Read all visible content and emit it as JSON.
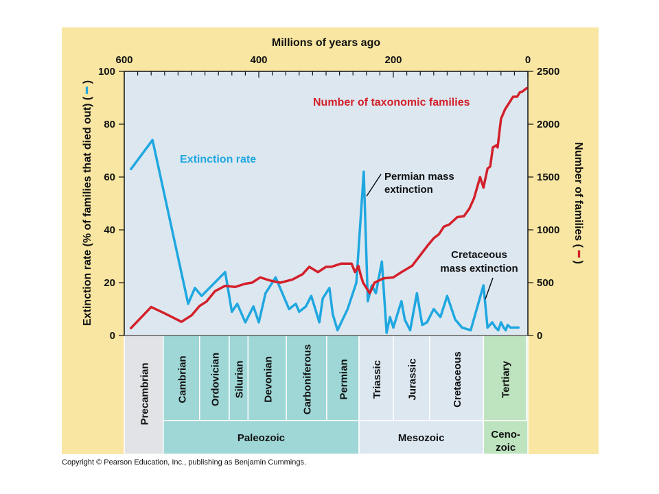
{
  "colors": {
    "frame_bg": "#f8e6a2",
    "plot_bg": "#dce7f0",
    "extinction_line": "#1fa7e0",
    "families_line": "#d3202a",
    "paleozoic_fill": "#9fd6d6",
    "mesozoic_fill": "#dce7f0",
    "cenozoic_fill": "#bde3bf",
    "precambrian_fill": "#e2e3e6"
  },
  "chart_data": {
    "type": "line",
    "top_axis": {
      "label": "Millions of years ago",
      "range": [
        600,
        0
      ],
      "ticks": [
        600,
        400,
        200,
        0
      ],
      "minor_step": 20
    },
    "left_axis": {
      "label": "Extinction rate (% of families that died out) (",
      "label_close": ")",
      "range": [
        0,
        100
      ],
      "ticks": [
        0,
        20,
        40,
        60,
        80,
        100
      ]
    },
    "right_axis": {
      "label": "Number of families (",
      "label_close": ")",
      "range": [
        0,
        2500
      ],
      "ticks": [
        0,
        500,
        1000,
        1500,
        2000,
        2500
      ]
    },
    "series": [
      {
        "name": "Extinction rate",
        "axis": "left",
        "x": [
          590,
          558,
          505,
          495,
          485,
          450,
          440,
          432,
          420,
          408,
          400,
          390,
          375,
          355,
          345,
          340,
          330,
          322,
          310,
          305,
          295,
          290,
          283,
          268,
          255,
          244,
          238,
          232,
          226,
          217,
          210,
          205,
          200,
          188,
          183,
          175,
          165,
          157,
          150,
          140,
          130,
          120,
          108,
          98,
          85,
          66,
          60,
          53,
          48,
          44,
          40,
          36,
          33,
          30,
          26,
          22,
          14
        ],
        "values": [
          63,
          74,
          12,
          18,
          15,
          24,
          9,
          12,
          5,
          11,
          5,
          16,
          22,
          10,
          12,
          9,
          11,
          15,
          5,
          14,
          18,
          8,
          2,
          10,
          20,
          62,
          13,
          19,
          16,
          28,
          1,
          7,
          3,
          13,
          6,
          2,
          16,
          4,
          5,
          10,
          7,
          15,
          6,
          3,
          2,
          19,
          3,
          5,
          3,
          2,
          5,
          3,
          2,
          4,
          3,
          3,
          3
        ]
      },
      {
        "name": "Number of taxonomic families",
        "axis": "right",
        "x": [
          590,
          560,
          540,
          515,
          500,
          488,
          478,
          465,
          450,
          435,
          420,
          410,
          398,
          383,
          368,
          350,
          335,
          325,
          312,
          300,
          292,
          278,
          262,
          257,
          252,
          248,
          245,
          235,
          228,
          215,
          200,
          188,
          172,
          160,
          148,
          140,
          132,
          125,
          117,
          105,
          95,
          87,
          80,
          71,
          66,
          60,
          56,
          52,
          47,
          45,
          40,
          34,
          28,
          22,
          16,
          12,
          8,
          2
        ],
        "values": [
          70,
          270,
          210,
          130,
          190,
          280,
          320,
          420,
          470,
          460,
          490,
          500,
          550,
          520,
          500,
          530,
          580,
          650,
          600,
          650,
          650,
          680,
          680,
          600,
          660,
          560,
          500,
          400,
          500,
          540,
          550,
          600,
          660,
          760,
          860,
          920,
          960,
          1030,
          1050,
          1120,
          1130,
          1200,
          1300,
          1500,
          1400,
          1580,
          1600,
          1780,
          1800,
          1780,
          2050,
          2140,
          2200,
          2260,
          2260,
          2300,
          2310,
          2340
        ]
      }
    ],
    "annotations": [
      {
        "id": "permian",
        "lines": [
          "Permian mass",
          "extinction"
        ]
      },
      {
        "id": "cretaceous",
        "lines": [
          "Cretaceous",
          "mass extinction"
        ]
      }
    ],
    "periods": [
      {
        "name": "Precambrian",
        "start": 600,
        "end": 542,
        "era": "Precambrian"
      },
      {
        "name": "Cambrian",
        "start": 542,
        "end": 488,
        "era": "Paleozoic"
      },
      {
        "name": "Ordovician",
        "start": 488,
        "end": 444,
        "era": "Paleozoic"
      },
      {
        "name": "Silurian",
        "start": 444,
        "end": 416,
        "era": "Paleozoic"
      },
      {
        "name": "Devonian",
        "start": 416,
        "end": 359,
        "era": "Paleozoic"
      },
      {
        "name": "Carboniferous",
        "start": 359,
        "end": 299,
        "era": "Paleozoic"
      },
      {
        "name": "Permian",
        "start": 299,
        "end": 251,
        "era": "Paleozoic"
      },
      {
        "name": "Triassic",
        "start": 251,
        "end": 200,
        "era": "Mesozoic"
      },
      {
        "name": "Jurassic",
        "start": 200,
        "end": 146,
        "era": "Mesozoic"
      },
      {
        "name": "Cretaceous",
        "start": 146,
        "end": 66,
        "era": "Mesozoic"
      },
      {
        "name": "Tertiary",
        "start": 66,
        "end": 2,
        "era": "Cenozoic"
      },
      {
        "name": "",
        "start": 2,
        "end": 0,
        "era": "Cenozoic"
      }
    ],
    "eras": [
      {
        "name": "Paleozoic",
        "start": 542,
        "end": 251
      },
      {
        "name": "Mesozoic",
        "start": 251,
        "end": 66
      },
      {
        "name": "Ceno-\nzoic",
        "start": 66,
        "end": 0
      }
    ]
  },
  "copyright": "Copyright © Pearson Education, Inc., publishing as Benjamin Cummings."
}
